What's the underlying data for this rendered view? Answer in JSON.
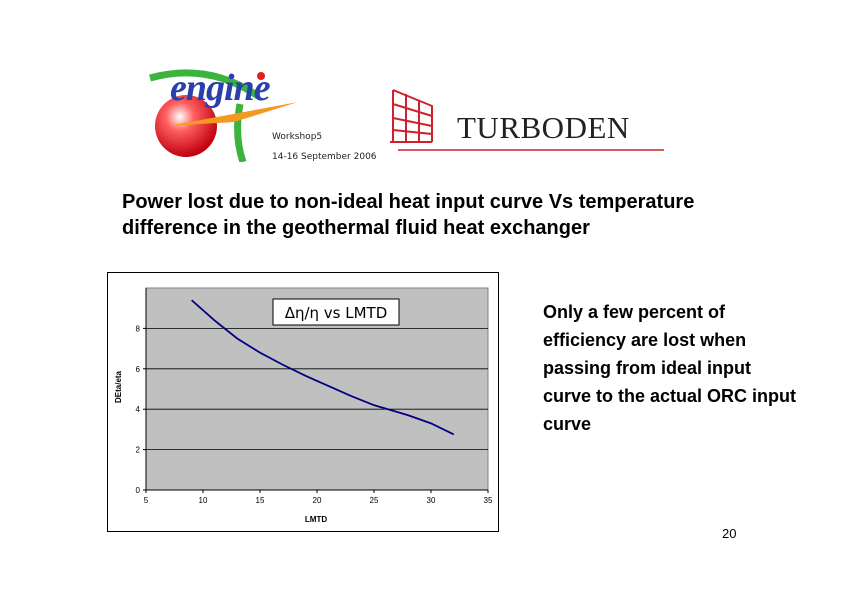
{
  "logos": {
    "engine": {
      "word": "engine",
      "icon": "engine-logo-icon"
    },
    "turboden": {
      "word": "TURBODEN",
      "icon": "turboden-logo-icon"
    }
  },
  "workshop": {
    "line1": "Workshop5",
    "line2": "14-16 September 2006"
  },
  "slide": {
    "title": "Power lost due to non-ideal heat input curve Vs temperature difference in the geothermal fluid heat exchanger",
    "side_text": "Only a few percent of efficiency are lost when passing from ideal input curve to the actual ORC input curve",
    "page_number": "20"
  },
  "colors": {
    "plot_bg": "#c0c0c0",
    "line": "#000080",
    "engine_blue": "#2a3fae",
    "turboden_red": "#d0202a"
  },
  "chart_data": {
    "type": "line",
    "title": "",
    "legend_box_text": "Δη/η vs LMTD",
    "xlabel": "LMTD",
    "ylabel": "DEta/eta",
    "xlim": [
      5,
      35
    ],
    "ylim": [
      0,
      10
    ],
    "xticks": [
      5,
      10,
      15,
      20,
      25,
      30,
      35
    ],
    "yticks": [
      0,
      2,
      4,
      6,
      8
    ],
    "grid": true,
    "series": [
      {
        "x": [
          9,
          11,
          13,
          15,
          17,
          19,
          21,
          23,
          25,
          28,
          30,
          32
        ],
        "values": [
          9.4,
          8.4,
          7.5,
          6.8,
          6.2,
          5.65,
          5.15,
          4.65,
          4.2,
          3.7,
          3.3,
          2.75
        ]
      }
    ]
  }
}
